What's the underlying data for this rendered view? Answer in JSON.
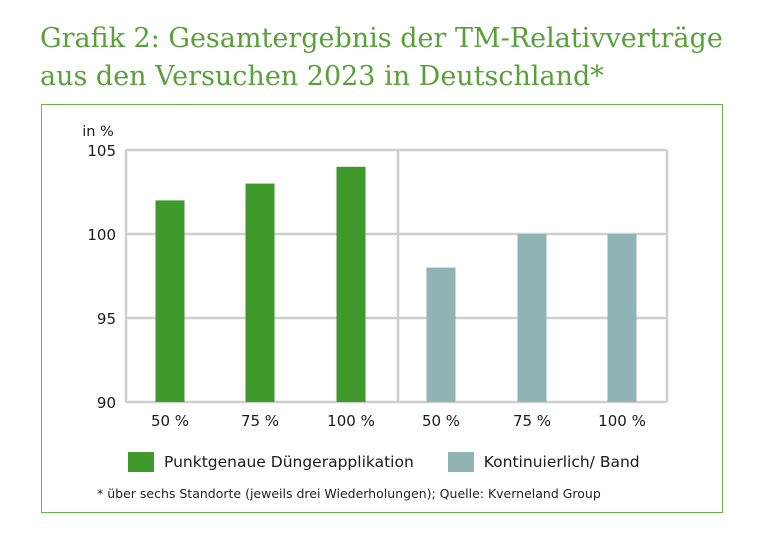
{
  "title": {
    "line1": "Grafik 2: Gesamtergebnis der TM-Relativverträge",
    "line2": "aus den Versuchen 2023 in Deutschland*"
  },
  "colors": {
    "title": "#5aa03a",
    "frame": "#6ab04c",
    "grid": "#cfcfcf",
    "series1": "#3f9a2b",
    "series2": "#8fb4b3"
  },
  "chart_data": {
    "type": "bar",
    "ylabel": "in %",
    "ylim": [
      90,
      105
    ],
    "yticks": [
      90,
      95,
      100,
      105
    ],
    "grid": true,
    "categories": [
      "50 %",
      "75 %",
      "100 %",
      "50 %",
      "75 %",
      "100 %"
    ],
    "series": [
      {
        "name": "Punktgenaue Düngerapplikation",
        "color": "#3f9a2b",
        "values": [
          102,
          103,
          104,
          null,
          null,
          null
        ]
      },
      {
        "name": "Kontinuierlich/ Band",
        "color": "#8fb4b3",
        "values": [
          null,
          null,
          null,
          98,
          100,
          100
        ]
      }
    ],
    "legend_position": "bottom"
  },
  "footnote": "* über sechs Standorte (jeweils drei Wiederholungen); Quelle: Kverneland Group"
}
